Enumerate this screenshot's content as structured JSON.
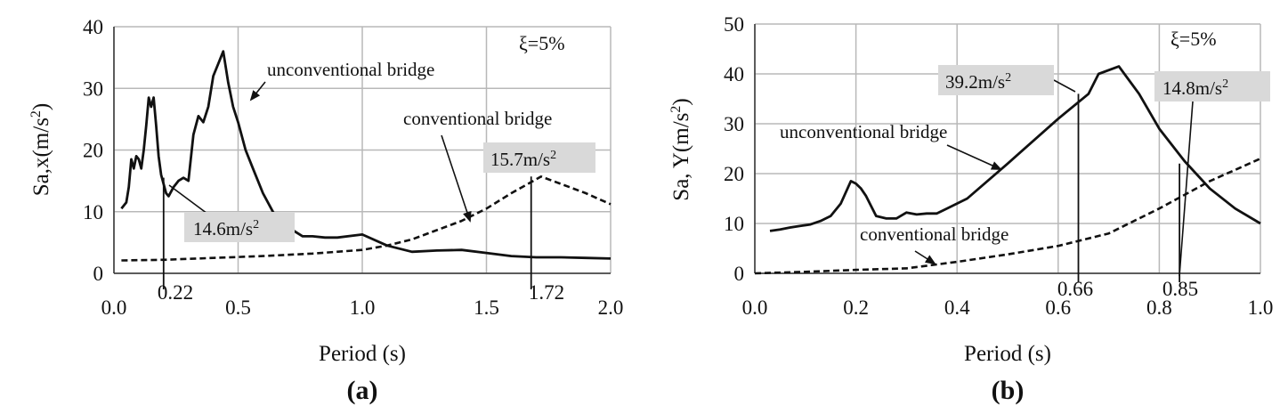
{
  "chart_data": [
    {
      "type": "line",
      "panel_label": "(a)",
      "xlabel": "Period (s)",
      "ylabel": "Sa,x(m/s²)",
      "ylabel_base": "Sa,x(m/s",
      "ylabel_sup": "2",
      "ylabel_tail": ")",
      "xlim": [
        0,
        2.0
      ],
      "ylim": [
        0,
        40
      ],
      "x_ticks": [
        "0.0",
        "0.5",
        "1.0",
        "1.5",
        "2.0"
      ],
      "x_tick_values": [
        0,
        0.5,
        1.0,
        1.5,
        2.0
      ],
      "y_ticks": [
        "0",
        "10",
        "20",
        "30",
        "40"
      ],
      "y_tick_values": [
        0,
        10,
        20,
        30,
        40
      ],
      "grid": true,
      "damping_label": "ξ=5%",
      "series": [
        {
          "name": "unconventional bridge",
          "style": "solid",
          "x": [
            0.03,
            0.05,
            0.06,
            0.07,
            0.08,
            0.09,
            0.1,
            0.11,
            0.12,
            0.13,
            0.14,
            0.15,
            0.16,
            0.17,
            0.18,
            0.19,
            0.2,
            0.21,
            0.22,
            0.24,
            0.26,
            0.28,
            0.3,
            0.32,
            0.34,
            0.36,
            0.38,
            0.4,
            0.42,
            0.44,
            0.46,
            0.48,
            0.5,
            0.53,
            0.56,
            0.6,
            0.64,
            0.68,
            0.72,
            0.76,
            0.8,
            0.85,
            0.9,
            1.0,
            1.1,
            1.2,
            1.3,
            1.4,
            1.5,
            1.6,
            1.7,
            1.8,
            1.9,
            2.0
          ],
          "y": [
            10.5,
            11.5,
            14,
            18.5,
            17,
            19,
            18.5,
            17,
            20,
            24,
            28.5,
            27,
            28.5,
            24,
            19,
            16,
            14.5,
            13,
            12.5,
            14,
            15,
            15.5,
            15,
            22.5,
            25.5,
            24.5,
            27,
            32,
            34,
            36,
            31,
            27,
            24.5,
            20,
            17,
            13,
            10,
            7.5,
            7,
            6,
            6,
            5.8,
            5.8,
            6.3,
            4.5,
            3.5,
            3.7,
            3.8,
            3.3,
            2.8,
            2.6,
            2.6,
            2.5,
            2.4
          ]
        },
        {
          "name": "conventional bridge",
          "style": "dashed",
          "x": [
            0.03,
            0.2,
            0.4,
            0.6,
            0.8,
            1.0,
            1.1,
            1.2,
            1.3,
            1.4,
            1.5,
            1.6,
            1.72,
            1.8,
            1.9,
            2.0
          ],
          "y": [
            2.1,
            2.2,
            2.5,
            2.8,
            3.2,
            3.8,
            4.5,
            5.5,
            7,
            8.5,
            10.5,
            13,
            15.7,
            14.5,
            13,
            11.2
          ]
        }
      ],
      "marked_periods": [
        "0.22",
        "1.72"
      ],
      "marked_period_values": [
        0.2,
        1.68
      ],
      "marked_period_heights": [
        15.5,
        15.7
      ],
      "callouts": [
        "14.6m/s²",
        "15.7m/s²"
      ],
      "callout_texts": [
        {
          "base": "14.6m/s",
          "sup": "2"
        },
        {
          "base": "15.7m/s",
          "sup": "2"
        }
      ],
      "series_labels": [
        "unconventional bridge",
        "conventional bridge"
      ]
    },
    {
      "type": "line",
      "panel_label": "(b)",
      "xlabel": "Period (s)",
      "ylabel": "Sa, Y(m/s²)",
      "ylabel_base": "Sa, Y(m/s",
      "ylabel_sup": "2",
      "ylabel_tail": ")",
      "xlim": [
        0,
        1.0
      ],
      "ylim": [
        0,
        50
      ],
      "x_ticks": [
        "0.0",
        "0.2",
        "0.4",
        "0.6",
        "0.8",
        "1.0"
      ],
      "x_tick_values": [
        0,
        0.2,
        0.4,
        0.6,
        0.8,
        1.0
      ],
      "y_ticks": [
        "0",
        "10",
        "20",
        "30",
        "40",
        "50"
      ],
      "y_tick_values": [
        0,
        10,
        20,
        30,
        40,
        50
      ],
      "grid": true,
      "damping_label": "ξ=5%",
      "series": [
        {
          "name": "unconventional bridge",
          "style": "solid",
          "x": [
            0.03,
            0.05,
            0.07,
            0.09,
            0.11,
            0.13,
            0.15,
            0.17,
            0.19,
            0.2,
            0.21,
            0.22,
            0.24,
            0.26,
            0.28,
            0.3,
            0.32,
            0.34,
            0.36,
            0.38,
            0.4,
            0.42,
            0.5,
            0.6,
            0.66,
            0.68,
            0.72,
            0.76,
            0.8,
            0.85,
            0.9,
            0.95,
            1.0
          ],
          "y": [
            8.5,
            8.8,
            9.2,
            9.5,
            9.8,
            10.5,
            11.5,
            14,
            18.5,
            18,
            17,
            15.5,
            11.5,
            11,
            11,
            12.2,
            11.8,
            12,
            12,
            13,
            14,
            15,
            22,
            31,
            36,
            40,
            41.5,
            36,
            29,
            22.5,
            17,
            13,
            10
          ]
        },
        {
          "name": "conventional bridge",
          "style": "dashed",
          "x": [
            0.0,
            0.1,
            0.2,
            0.3,
            0.4,
            0.5,
            0.6,
            0.7,
            0.8,
            0.9,
            1.0
          ],
          "y": [
            0,
            0.3,
            0.7,
            1.0,
            2.3,
            3.8,
            5.5,
            8,
            13,
            18.5,
            23
          ]
        }
      ],
      "marked_periods": [
        "0.66",
        "0.85"
      ],
      "marked_period_values": [
        0.64,
        0.84
      ],
      "marked_period_heights": [
        36,
        22
      ],
      "callouts": [
        "39.2m/s²",
        "14.8m/s²"
      ],
      "callout_texts": [
        {
          "base": "39.2m/s",
          "sup": "2"
        },
        {
          "base": "14.8m/s",
          "sup": "2"
        }
      ],
      "series_labels": [
        "unconventional bridge",
        "conventional bridge"
      ]
    }
  ]
}
